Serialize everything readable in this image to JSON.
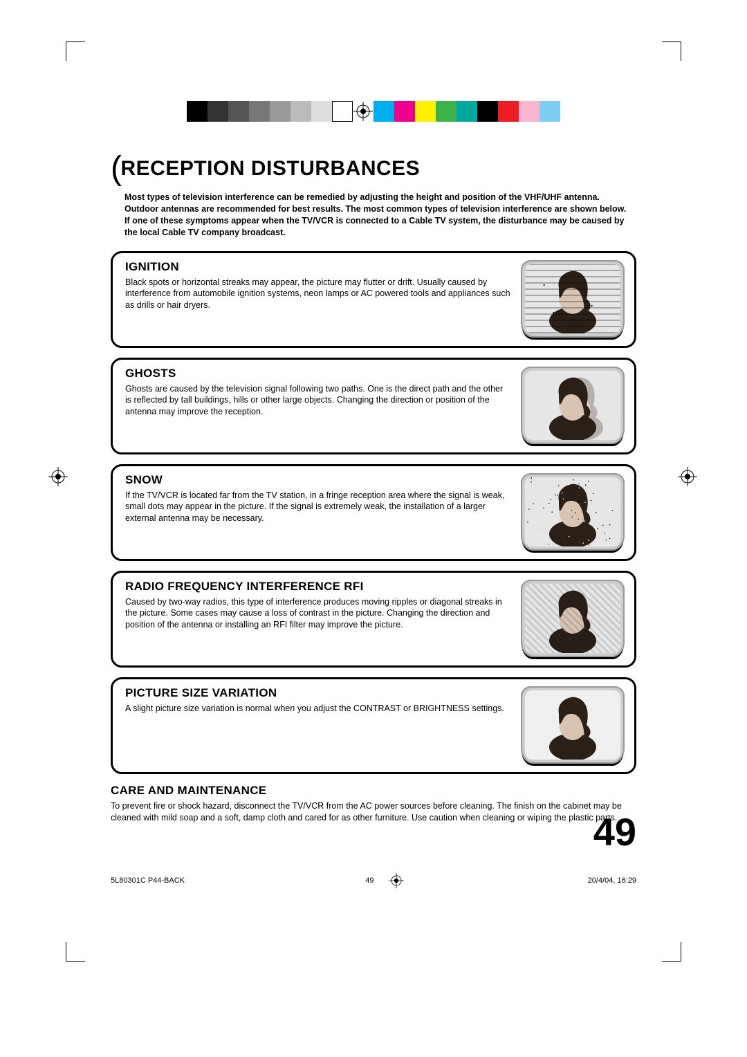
{
  "cropMarks": {
    "color": "#000000"
  },
  "colorBars": {
    "leftSwatches": [
      "#000000",
      "#333333",
      "#555555",
      "#777777",
      "#999999",
      "#bbbbbb",
      "#dddddd",
      "#ffffff"
    ],
    "leftSwatchBorder": "#000000",
    "rightSwatches": [
      "#00aeef",
      "#ec008c",
      "#fff200",
      "#3cb44b",
      "#00a99d",
      "#000000",
      "#ed1c24",
      "#f9b5d0",
      "#7ecef4"
    ]
  },
  "title": "RECEPTION DISTURBANCES",
  "intro": "Most types of television interference can be remedied by adjusting the height and position of the VHF/UHF antenna. Outdoor antennas are recommended for best results. The most common types of television interference are shown below. If one of these symptoms appear when the TV/VCR is connected to a Cable TV system, the disturbance may be caused by the local Cable TV company broadcast.",
  "sections": [
    {
      "heading": "IGNITION",
      "body": "Black spots or horizontal streaks may appear, the picture may flutter or drift. Usually caused by interference from automobile ignition systems, neon lamps or AC powered tools and appliances such as drills or hair dryers.",
      "thumb": {
        "effect": "streaks",
        "bg": "#e6e6e6"
      }
    },
    {
      "heading": "GHOSTS",
      "body": "Ghosts are caused by the television signal following two paths. One is the direct path and the other is reflected by tall buildings, hills or other large objects. Changing the direction or position of the antenna may improve the reception.",
      "thumb": {
        "effect": "ghost",
        "bg": "#e6e6e6"
      }
    },
    {
      "heading": "SNOW",
      "body": "If the TV/VCR is located far from the TV station, in a fringe reception area where the signal is weak, small dots may appear in the picture. If the signal is extremely weak, the installation of a larger external antenna may be necessary.",
      "thumb": {
        "effect": "snow",
        "bg": "#e6e6e6"
      }
    },
    {
      "heading": "RADIO FREQUENCY INTERFERENCE RFI",
      "body": "Caused by two-way radios, this type of interference produces moving ripples or diagonal streaks in the picture. Some cases may cause a loss of contrast in the picture. Changing the direction and position of the antenna or installing an RFI filter may improve the picture.",
      "thumb": {
        "effect": "ripples",
        "bg": "#e6e6e6"
      }
    },
    {
      "heading": "PICTURE SIZE VARIATION",
      "body": "A slight picture size variation is normal when you adjust the CONTRAST or BRIGHTNESS settings.",
      "thumb": {
        "effect": "clean",
        "bg": "#f0f0f0"
      }
    }
  ],
  "care": {
    "heading": "CARE AND MAINTENANCE",
    "body": "To prevent fire or shock hazard, disconnect the TV/VCR from the AC power sources before cleaning. The finish on the cabinet may be cleaned with mild soap and a soft, damp cloth and cared for as other furniture. Use caution when cleaning or wiping the plastic parts."
  },
  "pageNumber": "49",
  "footer": {
    "left": "5L80301C P44-BACK",
    "midPage": "49",
    "right": "20/4/04, 16:29"
  }
}
